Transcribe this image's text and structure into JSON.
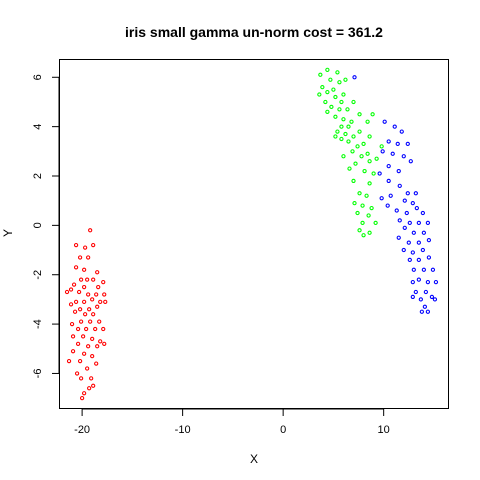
{
  "chart_data": {
    "type": "scatter",
    "title": "iris small gamma un-norm cost = 361.2",
    "xlabel": "X",
    "ylabel": "Y",
    "xlim": [
      -22.2,
      16.4
    ],
    "ylim": [
      -7.4,
      6.7
    ],
    "xticks": [
      -20,
      -10,
      0,
      10
    ],
    "xtick_labels": [
      "-20",
      "-10",
      "0",
      "10"
    ],
    "yticks": [
      -6,
      -4,
      -2,
      0,
      2,
      4,
      6
    ],
    "ytick_labels": [
      "-6",
      "-4",
      "-2",
      "0",
      "2",
      "4",
      "6"
    ],
    "grid": false,
    "legend": "none",
    "series": [
      {
        "color": "#ff0000",
        "points": [
          [
            -19.2,
            -0.2
          ],
          [
            -20.6,
            -0.8
          ],
          [
            -19.7,
            -0.9
          ],
          [
            -18.9,
            -0.8
          ],
          [
            -20.2,
            -1.3
          ],
          [
            -19.4,
            -1.3
          ],
          [
            -20.6,
            -1.7
          ],
          [
            -19.8,
            -1.8
          ],
          [
            -18.5,
            -1.9
          ],
          [
            -20.1,
            -2.2
          ],
          [
            -19.5,
            -2.2
          ],
          [
            -18.9,
            -2.2
          ],
          [
            -17.9,
            -2.3
          ],
          [
            -20.8,
            -2.4
          ],
          [
            -19.8,
            -2.5
          ],
          [
            -18.4,
            -2.5
          ],
          [
            -21.1,
            -2.6
          ],
          [
            -20.3,
            -2.7
          ],
          [
            -19.4,
            -2.8
          ],
          [
            -18.6,
            -2.8
          ],
          [
            -17.8,
            -2.8
          ],
          [
            -21.5,
            -2.7
          ],
          [
            -20.6,
            -3.1
          ],
          [
            -19.8,
            -3.1
          ],
          [
            -19.0,
            -3.0
          ],
          [
            -18.2,
            -3.1
          ],
          [
            -21.1,
            -3.2
          ],
          [
            -20.2,
            -3.4
          ],
          [
            -19.3,
            -3.4
          ],
          [
            -18.5,
            -3.3
          ],
          [
            -17.7,
            -3.1
          ],
          [
            -20.7,
            -3.5
          ],
          [
            -19.7,
            -3.6
          ],
          [
            -18.9,
            -3.6
          ],
          [
            -20.1,
            -3.9
          ],
          [
            -19.2,
            -3.9
          ],
          [
            -18.3,
            -3.9
          ],
          [
            -21.0,
            -4.0
          ],
          [
            -20.4,
            -4.2
          ],
          [
            -19.6,
            -4.2
          ],
          [
            -18.7,
            -4.2
          ],
          [
            -17.9,
            -4.2
          ],
          [
            -20.9,
            -4.5
          ],
          [
            -19.9,
            -4.5
          ],
          [
            -19.0,
            -4.6
          ],
          [
            -18.2,
            -4.7
          ],
          [
            -20.4,
            -4.8
          ],
          [
            -19.4,
            -4.9
          ],
          [
            -18.5,
            -4.9
          ],
          [
            -17.8,
            -4.8
          ],
          [
            -20.9,
            -5.1
          ],
          [
            -19.8,
            -5.2
          ],
          [
            -19.0,
            -5.3
          ],
          [
            -20.2,
            -5.5
          ],
          [
            -18.6,
            -5.6
          ],
          [
            -21.3,
            -5.5
          ],
          [
            -19.5,
            -5.8
          ],
          [
            -20.5,
            -6.0
          ],
          [
            -19.1,
            -6.2
          ],
          [
            -20.1,
            -6.2
          ],
          [
            -18.9,
            -6.5
          ],
          [
            -19.8,
            -6.8
          ],
          [
            -20.0,
            -7.0
          ],
          [
            -19.3,
            -6.6
          ]
        ]
      },
      {
        "color": "#00ff00",
        "points": [
          [
            4.4,
            6.3
          ],
          [
            5.4,
            6.2
          ],
          [
            3.7,
            6.1
          ],
          [
            6.2,
            5.9
          ],
          [
            4.7,
            5.9
          ],
          [
            5.6,
            5.8
          ],
          [
            3.9,
            5.6
          ],
          [
            5.0,
            5.5
          ],
          [
            4.4,
            5.4
          ],
          [
            3.6,
            5.3
          ],
          [
            6.0,
            5.3
          ],
          [
            5.2,
            5.2
          ],
          [
            4.2,
            5.0
          ],
          [
            5.8,
            5.0
          ],
          [
            7.0,
            5.0
          ],
          [
            4.8,
            4.8
          ],
          [
            5.6,
            4.7
          ],
          [
            6.4,
            4.7
          ],
          [
            4.4,
            4.6
          ],
          [
            7.6,
            4.5
          ],
          [
            8.9,
            4.5
          ],
          [
            5.2,
            4.4
          ],
          [
            6.0,
            4.3
          ],
          [
            6.8,
            4.2
          ],
          [
            8.4,
            4.2
          ],
          [
            5.8,
            4.0
          ],
          [
            6.5,
            4.0
          ],
          [
            7.6,
            3.8
          ],
          [
            5.4,
            3.8
          ],
          [
            6.2,
            3.7
          ],
          [
            7.0,
            3.6
          ],
          [
            5.2,
            3.6
          ],
          [
            8.6,
            3.6
          ],
          [
            5.8,
            3.5
          ],
          [
            6.5,
            3.4
          ],
          [
            8.0,
            3.3
          ],
          [
            9.8,
            3.2
          ],
          [
            7.4,
            3.2
          ],
          [
            6.9,
            3.0
          ],
          [
            8.4,
            2.9
          ],
          [
            6.0,
            2.8
          ],
          [
            7.8,
            2.8
          ],
          [
            9.3,
            2.7
          ],
          [
            7.2,
            2.5
          ],
          [
            8.6,
            2.6
          ],
          [
            6.6,
            2.3
          ],
          [
            8.1,
            2.2
          ],
          [
            9.0,
            2.1
          ],
          [
            7.0,
            1.8
          ],
          [
            8.6,
            1.7
          ],
          [
            7.6,
            1.3
          ],
          [
            8.3,
            1.2
          ],
          [
            7.1,
            0.9
          ],
          [
            7.9,
            0.8
          ],
          [
            8.8,
            0.7
          ],
          [
            7.4,
            0.5
          ],
          [
            8.5,
            0.4
          ],
          [
            7.9,
            0.1
          ],
          [
            9.2,
            0.1
          ],
          [
            7.6,
            -0.2
          ],
          [
            8.6,
            -0.3
          ],
          [
            8.0,
            -0.4
          ]
        ]
      },
      {
        "color": "#0000ff",
        "points": [
          [
            7.1,
            6.0
          ],
          [
            10.1,
            4.2
          ],
          [
            11.1,
            4.0
          ],
          [
            11.8,
            3.8
          ],
          [
            10.5,
            3.4
          ],
          [
            11.4,
            3.3
          ],
          [
            12.4,
            3.3
          ],
          [
            9.9,
            3.0
          ],
          [
            10.9,
            2.9
          ],
          [
            12.0,
            2.8
          ],
          [
            12.7,
            2.6
          ],
          [
            10.5,
            2.4
          ],
          [
            11.5,
            2.2
          ],
          [
            9.6,
            2.1
          ],
          [
            10.5,
            1.8
          ],
          [
            11.6,
            1.6
          ],
          [
            12.4,
            1.3
          ],
          [
            13.2,
            1.3
          ],
          [
            10.7,
            1.2
          ],
          [
            9.8,
            1.1
          ],
          [
            12.1,
            1.0
          ],
          [
            12.9,
            0.9
          ],
          [
            10.4,
            0.8
          ],
          [
            11.3,
            0.6
          ],
          [
            13.3,
            0.7
          ],
          [
            12.3,
            0.5
          ],
          [
            13.9,
            0.5
          ],
          [
            11.6,
            0.2
          ],
          [
            12.6,
            0.1
          ],
          [
            13.5,
            0.1
          ],
          [
            14.4,
            0.1
          ],
          [
            12.1,
            -0.1
          ],
          [
            13.0,
            -0.3
          ],
          [
            14.0,
            -0.3
          ],
          [
            11.5,
            -0.5
          ],
          [
            12.5,
            -0.7
          ],
          [
            13.5,
            -0.7
          ],
          [
            14.5,
            -0.6
          ],
          [
            12.0,
            -1.0
          ],
          [
            12.9,
            -1.1
          ],
          [
            13.9,
            -1.0
          ],
          [
            12.6,
            -1.4
          ],
          [
            13.5,
            -1.4
          ],
          [
            14.5,
            -1.3
          ],
          [
            13.0,
            -1.8
          ],
          [
            14.0,
            -1.8
          ],
          [
            14.9,
            -1.8
          ],
          [
            13.5,
            -2.2
          ],
          [
            12.9,
            -2.3
          ],
          [
            14.4,
            -2.3
          ],
          [
            15.2,
            -2.3
          ],
          [
            13.2,
            -2.7
          ],
          [
            14.2,
            -2.7
          ],
          [
            14.8,
            -2.9
          ],
          [
            12.9,
            -2.9
          ],
          [
            13.7,
            -3.0
          ],
          [
            15.1,
            -3.0
          ],
          [
            14.1,
            -3.3
          ],
          [
            13.8,
            -3.5
          ],
          [
            14.4,
            -3.5
          ]
        ]
      }
    ]
  }
}
